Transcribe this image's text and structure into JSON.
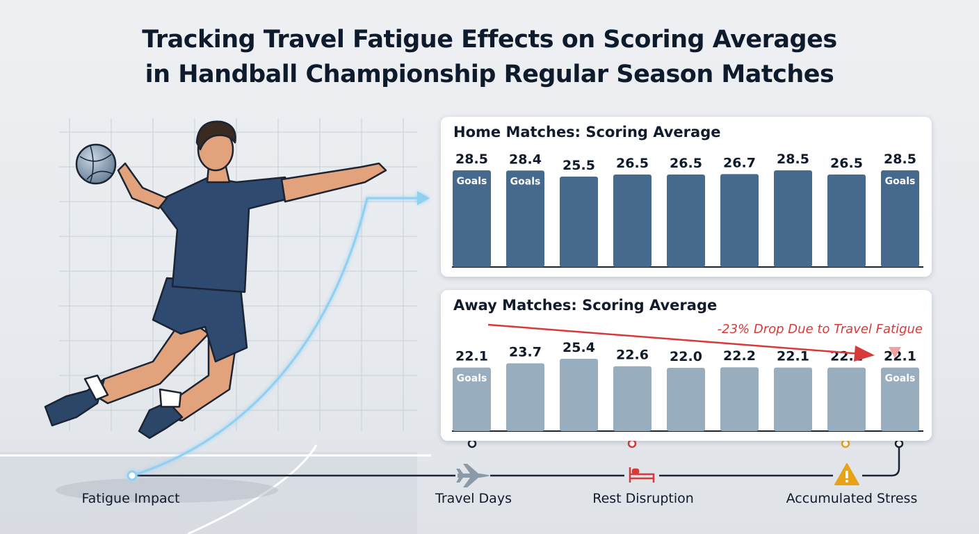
{
  "title_line1": "Tracking Travel Fatigue Effects on Scoring Averages",
  "title_line2": "in Handball Championship Regular Season Matches",
  "chart_data": [
    {
      "type": "bar",
      "title": "Home Matches: Scoring Average",
      "values": [
        28.5,
        28.4,
        25.5,
        26.5,
        26.5,
        26.7,
        28.5,
        26.5,
        28.5
      ],
      "value_labels": [
        "28.5",
        "28.4",
        "25.5",
        "26.5",
        "26.5",
        "26.7",
        "28.5",
        "26.5",
        "28.5"
      ],
      "unit_label": "Goals",
      "unit_label_bars": [
        0,
        1,
        8
      ],
      "bar_color": "#466a8e"
    },
    {
      "type": "bar",
      "title": "Away Matches: Scoring Average",
      "values": [
        22.1,
        23.7,
        25.4,
        22.6,
        22.0,
        22.2,
        22.1,
        22.1,
        22.1
      ],
      "value_labels": [
        "22.1",
        "23.7",
        "25.4",
        "22.6",
        "22.0",
        "22.2",
        "22.1",
        "22.1",
        "22.1"
      ],
      "unit_label": "Goals",
      "unit_label_bars": [
        0,
        8
      ],
      "bar_color": "#98aebf",
      "annotation": "-23% Drop Due to Travel Fatigue",
      "annotation_color": "#d83a3a"
    }
  ],
  "timeline": {
    "items": [
      {
        "label": "Fatigue Impact",
        "icon": "glow-dot-icon"
      },
      {
        "label": "Travel Days",
        "icon": "airplane-icon",
        "color": "#8a9aa8"
      },
      {
        "label": "Rest Disruption",
        "icon": "bed-icon",
        "color": "#d83a3a"
      },
      {
        "label": "Accumulated Stress",
        "icon": "warning-icon",
        "color": "#e8a21a"
      }
    ]
  }
}
